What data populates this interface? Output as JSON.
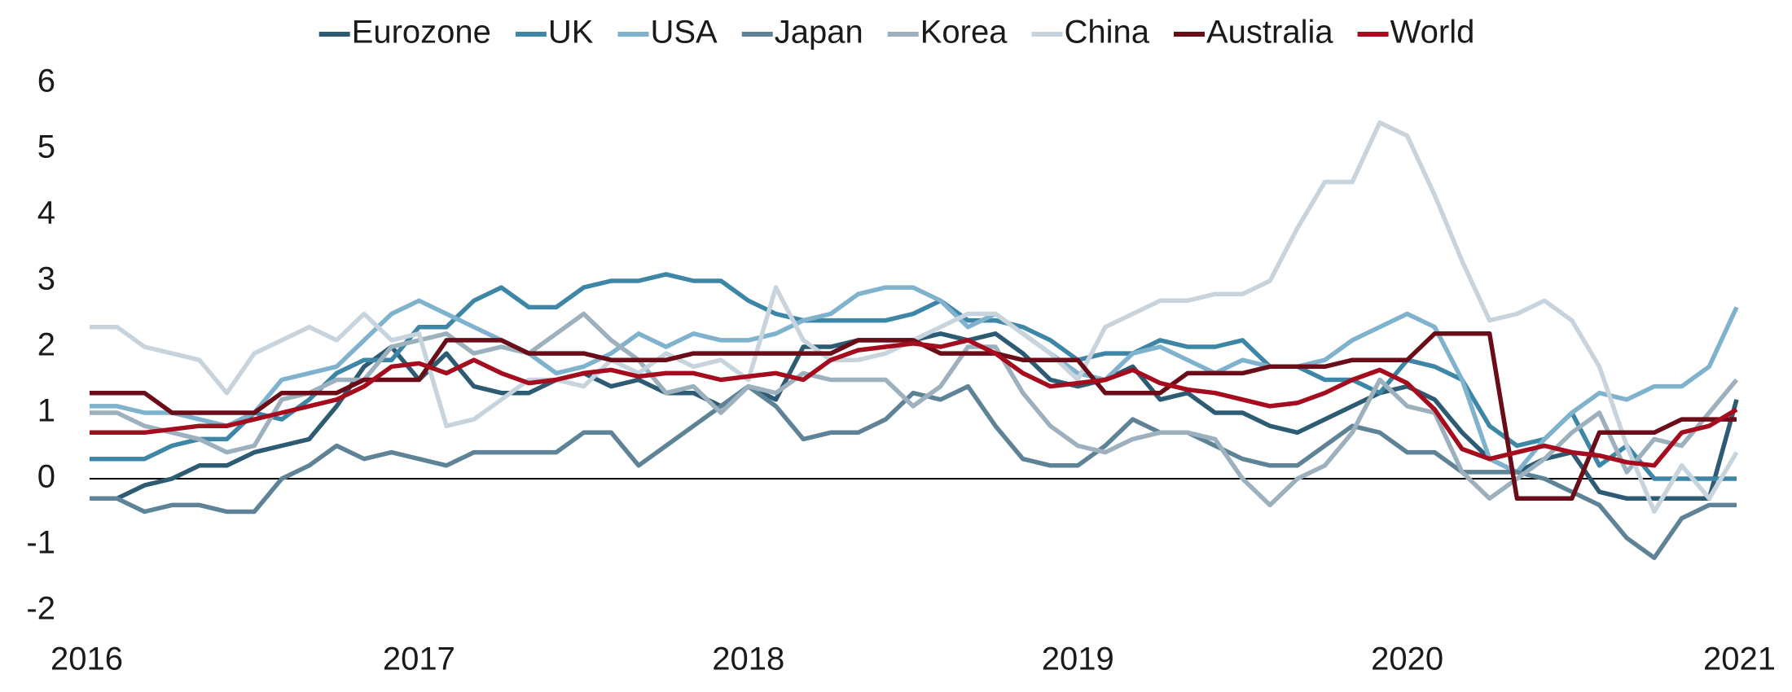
{
  "chart_data": {
    "type": "line",
    "categories": [
      "2016",
      null,
      null,
      null,
      null,
      null,
      null,
      null,
      null,
      null,
      null,
      null,
      "2017",
      null,
      null,
      null,
      null,
      null,
      null,
      null,
      null,
      null,
      null,
      null,
      "2018",
      null,
      null,
      null,
      null,
      null,
      null,
      null,
      null,
      null,
      null,
      null,
      "2019",
      null,
      null,
      null,
      null,
      null,
      null,
      null,
      null,
      null,
      null,
      null,
      "2020",
      null,
      null,
      null,
      null,
      null,
      null,
      null,
      null,
      null,
      null,
      null,
      "2021"
    ],
    "series": [
      {
        "name": "Eurozone",
        "color": "#2d5b73",
        "values": [
          -0.3,
          -0.3,
          -0.1,
          0.0,
          0.2,
          0.2,
          0.4,
          0.5,
          0.6,
          1.1,
          1.7,
          2.0,
          1.5,
          1.9,
          1.4,
          1.3,
          1.3,
          1.5,
          1.6,
          1.4,
          1.5,
          1.3,
          1.3,
          1.1,
          1.4,
          1.2,
          2.0,
          2.0,
          2.1,
          2.1,
          2.1,
          2.2,
          2.1,
          2.2,
          1.9,
          1.5,
          1.4,
          1.5,
          1.7,
          1.2,
          1.3,
          1.0,
          1.0,
          0.8,
          0.7,
          0.9,
          1.1,
          1.3,
          1.4,
          1.2,
          0.7,
          0.3,
          0.1,
          0.3,
          0.4,
          -0.2,
          -0.3,
          -0.3,
          -0.3,
          -0.3,
          1.2
        ]
      },
      {
        "name": "UK",
        "color": "#3e86a6",
        "values": [
          0.3,
          0.3,
          0.3,
          0.5,
          0.6,
          0.6,
          1.0,
          0.9,
          1.2,
          1.6,
          1.8,
          1.8,
          2.3,
          2.3,
          2.7,
          2.9,
          2.6,
          2.6,
          2.9,
          3.0,
          3.0,
          3.1,
          3.0,
          3.0,
          2.7,
          2.5,
          2.4,
          2.4,
          2.4,
          2.4,
          2.5,
          2.7,
          2.4,
          2.4,
          2.3,
          2.1,
          1.8,
          1.9,
          1.9,
          2.1,
          2.0,
          2.0,
          2.1,
          1.7,
          1.7,
          1.5,
          1.5,
          1.3,
          1.8,
          1.7,
          1.5,
          0.8,
          0.5,
          0.6,
          1.0,
          0.2,
          0.5,
          0.0,
          0.0,
          0.0,
          0.0
        ]
      },
      {
        "name": "USA",
        "color": "#7fb2cc",
        "values": [
          1.1,
          1.1,
          1.0,
          1.0,
          0.9,
          0.8,
          1.0,
          1.5,
          1.6,
          1.7,
          2.1,
          2.5,
          2.7,
          2.5,
          2.3,
          2.1,
          1.9,
          1.6,
          1.7,
          1.9,
          2.2,
          2.0,
          2.2,
          2.1,
          2.1,
          2.2,
          2.4,
          2.5,
          2.8,
          2.9,
          2.9,
          2.7,
          2.3,
          2.5,
          2.2,
          1.9,
          1.6,
          1.5,
          1.9,
          2.0,
          1.8,
          1.6,
          1.8,
          1.7,
          1.7,
          1.8,
          2.1,
          2.3,
          2.5,
          2.3,
          1.5,
          0.3,
          0.1,
          0.6,
          1.0,
          1.3,
          1.2,
          1.4,
          1.4,
          1.7,
          2.6
        ]
      },
      {
        "name": "Japan",
        "color": "#5e8397",
        "values": [
          -0.3,
          -0.3,
          -0.5,
          -0.4,
          -0.4,
          -0.5,
          -0.5,
          0.0,
          0.2,
          0.5,
          0.3,
          0.4,
          0.3,
          0.2,
          0.4,
          0.4,
          0.4,
          0.4,
          0.7,
          0.7,
          0.2,
          0.5,
          0.8,
          1.1,
          1.4,
          1.1,
          0.6,
          0.7,
          0.7,
          0.9,
          1.3,
          1.2,
          1.4,
          0.8,
          0.3,
          0.2,
          0.2,
          0.5,
          0.9,
          0.7,
          0.7,
          0.5,
          0.3,
          0.2,
          0.2,
          0.5,
          0.8,
          0.7,
          0.4,
          0.4,
          0.1,
          0.1,
          0.1,
          0.0,
          -0.2,
          -0.4,
          -0.9,
          -1.2,
          -0.6,
          -0.4,
          -0.4
        ]
      },
      {
        "name": "Korea",
        "color": "#9db0be",
        "values": [
          1.0,
          1.0,
          0.8,
          0.7,
          0.6,
          0.4,
          0.5,
          1.2,
          1.3,
          1.5,
          1.5,
          2.0,
          2.1,
          2.2,
          1.9,
          2.0,
          1.9,
          2.2,
          2.5,
          2.1,
          1.8,
          1.3,
          1.4,
          1.0,
          1.4,
          1.3,
          1.6,
          1.5,
          1.5,
          1.5,
          1.1,
          1.4,
          2.0,
          2.0,
          1.3,
          0.8,
          0.5,
          0.4,
          0.6,
          0.7,
          0.7,
          0.6,
          0.0,
          -0.4,
          0.0,
          0.2,
          0.7,
          1.5,
          1.1,
          1.0,
          0.1,
          -0.3,
          0.0,
          0.3,
          0.7,
          1.0,
          0.1,
          0.6,
          0.5,
          1.0,
          1.5
        ]
      },
      {
        "name": "China",
        "color": "#c7d4dd",
        "values": [
          2.3,
          2.3,
          2.0,
          1.9,
          1.8,
          1.3,
          1.9,
          2.1,
          2.3,
          2.1,
          2.5,
          2.1,
          2.2,
          0.8,
          0.9,
          1.2,
          1.5,
          1.5,
          1.4,
          1.8,
          1.6,
          1.9,
          1.7,
          1.8,
          1.5,
          2.9,
          2.1,
          1.8,
          1.8,
          1.9,
          2.1,
          2.3,
          2.5,
          2.5,
          2.2,
          1.9,
          1.5,
          2.3,
          2.5,
          2.7,
          2.7,
          2.8,
          2.8,
          3.0,
          3.8,
          4.5,
          4.5,
          5.4,
          5.2,
          4.3,
          3.3,
          2.4,
          2.5,
          2.7,
          2.4,
          1.7,
          0.5,
          -0.5,
          0.2,
          -0.3,
          0.4
        ]
      },
      {
        "name": "Australia",
        "color": "#6a0d18",
        "values": [
          1.3,
          1.3,
          1.3,
          1.0,
          1.0,
          1.0,
          1.0,
          1.3,
          1.3,
          1.3,
          1.5,
          1.5,
          1.5,
          2.1,
          2.1,
          2.1,
          1.9,
          1.9,
          1.9,
          1.8,
          1.8,
          1.8,
          1.9,
          1.9,
          1.9,
          1.9,
          1.9,
          1.9,
          2.1,
          2.1,
          2.1,
          1.9,
          1.9,
          1.9,
          1.8,
          1.8,
          1.8,
          1.3,
          1.3,
          1.3,
          1.6,
          1.6,
          1.6,
          1.7,
          1.7,
          1.7,
          1.8,
          1.8,
          1.8,
          2.2,
          2.2,
          2.2,
          -0.3,
          -0.3,
          -0.3,
          0.7,
          0.7,
          0.7,
          0.9,
          0.9,
          0.9
        ]
      },
      {
        "name": "World",
        "color": "#a50d1f",
        "values": [
          0.7,
          0.7,
          0.7,
          0.75,
          0.8,
          0.8,
          0.9,
          1.0,
          1.1,
          1.2,
          1.4,
          1.7,
          1.75,
          1.6,
          1.8,
          1.6,
          1.45,
          1.5,
          1.6,
          1.65,
          1.55,
          1.6,
          1.6,
          1.5,
          1.55,
          1.6,
          1.5,
          1.8,
          1.95,
          2.0,
          2.05,
          2.0,
          2.1,
          1.9,
          1.6,
          1.4,
          1.45,
          1.5,
          1.65,
          1.45,
          1.35,
          1.3,
          1.2,
          1.1,
          1.15,
          1.3,
          1.5,
          1.65,
          1.45,
          1.05,
          0.45,
          0.3,
          0.4,
          0.5,
          0.4,
          0.35,
          0.25,
          0.2,
          0.7,
          0.8,
          1.05
        ]
      }
    ],
    "ylim": [
      -2,
      6
    ],
    "yticks": [
      -2,
      -1,
      0,
      1,
      2,
      3,
      4,
      5,
      6
    ],
    "legend": "top",
    "grid": false
  }
}
